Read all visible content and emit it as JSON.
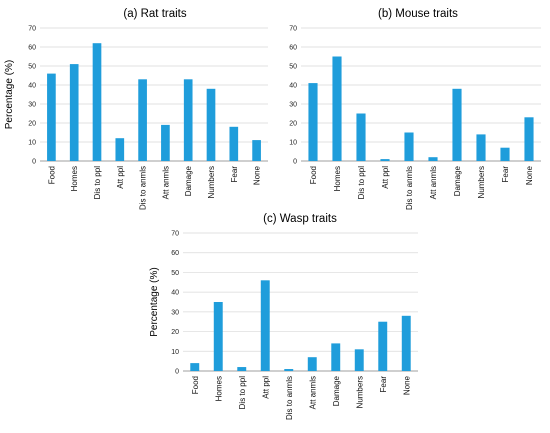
{
  "chart_data": [
    {
      "type": "bar",
      "title": "(a) Rat traits",
      "ylabel": "Percentage (%)",
      "xlabel": "",
      "ylim": [
        0,
        70
      ],
      "yticks": [
        0,
        10,
        20,
        30,
        40,
        50,
        60,
        70
      ],
      "grid": true,
      "bar_color": "#1f9ddb",
      "categories": [
        "Food",
        "Homes",
        "Dis to ppl",
        "Att ppl",
        "Dis to anmls",
        "Att anmls",
        "Damage",
        "Numbers",
        "Fear",
        "None"
      ],
      "values": [
        46,
        51,
        62,
        12,
        43,
        19,
        43,
        38,
        18,
        11
      ]
    },
    {
      "type": "bar",
      "title": "(b) Mouse traits",
      "ylabel": "",
      "xlabel": "",
      "ylim": [
        0,
        70
      ],
      "yticks": [
        0,
        10,
        20,
        30,
        40,
        50,
        60,
        70
      ],
      "grid": true,
      "bar_color": "#1f9ddb",
      "categories": [
        "Food",
        "Homes",
        "Dis to ppl",
        "Att ppl",
        "Dis to anmls",
        "Att anmls",
        "Damage",
        "Numbers",
        "Fear",
        "None"
      ],
      "values": [
        41,
        55,
        25,
        1,
        15,
        2,
        38,
        14,
        7,
        23
      ]
    },
    {
      "type": "bar",
      "title": "(c) Wasp traits",
      "ylabel": "Percentage (%)",
      "xlabel": "",
      "ylim": [
        0,
        70
      ],
      "yticks": [
        0,
        10,
        20,
        30,
        40,
        50,
        60,
        70
      ],
      "grid": true,
      "bar_color": "#1f9ddb",
      "categories": [
        "Food",
        "Homes",
        "Dis to ppl",
        "Att ppl",
        "Dis to anmls",
        "Att anmls",
        "Damage",
        "Numbers",
        "Fear",
        "None"
      ],
      "values": [
        4,
        35,
        2,
        46,
        1,
        7,
        14,
        11,
        25,
        28
      ]
    }
  ]
}
